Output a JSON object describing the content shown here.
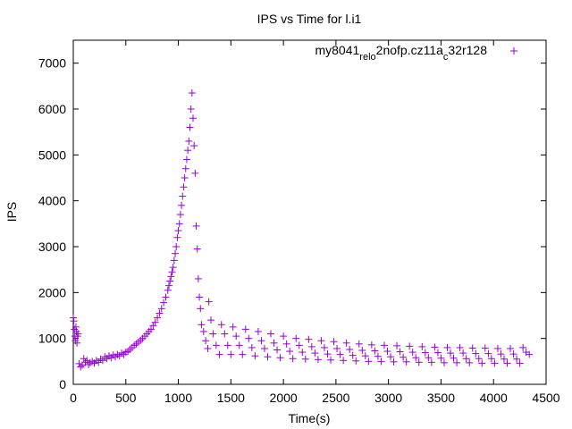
{
  "chart_data": {
    "type": "scatter",
    "title": "IPS vs Time for l.i1",
    "xlabel": "Time(s)",
    "ylabel": "IPS",
    "xlim": [
      0,
      4500
    ],
    "ylim": [
      0,
      7500
    ],
    "xticks": [
      0,
      500,
      1000,
      1500,
      2000,
      2500,
      3000,
      3500,
      4000,
      4500
    ],
    "yticks": [
      0,
      1000,
      2000,
      3000,
      4000,
      5000,
      6000,
      7000
    ],
    "grid": false,
    "legend_position": "top-right",
    "marker": "plus",
    "series": [
      {
        "name": "my8041_rel_o2nofp.cz11a_c32r128",
        "legend_parts": [
          {
            "text": "my8041",
            "sub": false
          },
          {
            "text": "rel",
            "sub": true
          },
          {
            "text": "o",
            "sub": true
          },
          {
            "text": "2nofp.cz11a",
            "sub": false
          },
          {
            "text": "c",
            "sub": true
          },
          {
            "text": "32r128",
            "sub": false
          }
        ],
        "color": "#9400d3",
        "points": [
          [
            0,
            1450
          ],
          [
            5,
            1380
          ],
          [
            10,
            1200
          ],
          [
            15,
            1050
          ],
          [
            20,
            950
          ],
          [
            25,
            1250
          ],
          [
            30,
            1150
          ],
          [
            35,
            900
          ],
          [
            40,
            1050
          ],
          [
            45,
            1100
          ],
          [
            55,
            450
          ],
          [
            70,
            380
          ],
          [
            85,
            420
          ],
          [
            100,
            560
          ],
          [
            115,
            480
          ],
          [
            130,
            520
          ],
          [
            145,
            430
          ],
          [
            160,
            470
          ],
          [
            180,
            500
          ],
          [
            200,
            460
          ],
          [
            220,
            520
          ],
          [
            240,
            480
          ],
          [
            260,
            550
          ],
          [
            280,
            520
          ],
          [
            300,
            600
          ],
          [
            320,
            560
          ],
          [
            340,
            620
          ],
          [
            360,
            580
          ],
          [
            380,
            640
          ],
          [
            400,
            600
          ],
          [
            420,
            650
          ],
          [
            440,
            620
          ],
          [
            460,
            680
          ],
          [
            480,
            650
          ],
          [
            500,
            700
          ],
          [
            520,
            720
          ],
          [
            540,
            760
          ],
          [
            560,
            800
          ],
          [
            580,
            850
          ],
          [
            600,
            880
          ],
          [
            620,
            920
          ],
          [
            640,
            960
          ],
          [
            660,
            1000
          ],
          [
            680,
            1050
          ],
          [
            700,
            1100
          ],
          [
            720,
            1150
          ],
          [
            740,
            1200
          ],
          [
            760,
            1280
          ],
          [
            780,
            1350
          ],
          [
            800,
            1450
          ],
          [
            820,
            1550
          ],
          [
            840,
            1650
          ],
          [
            860,
            1780
          ],
          [
            880,
            1900
          ],
          [
            900,
            2050
          ],
          [
            910,
            2150
          ],
          [
            920,
            2250
          ],
          [
            930,
            2350
          ],
          [
            940,
            2450
          ],
          [
            950,
            2550
          ],
          [
            960,
            2700
          ],
          [
            970,
            2850
          ],
          [
            980,
            3000
          ],
          [
            990,
            3200
          ],
          [
            1000,
            3350
          ],
          [
            1010,
            3500
          ],
          [
            1020,
            3700
          ],
          [
            1030,
            3900
          ],
          [
            1040,
            4100
          ],
          [
            1050,
            4300
          ],
          [
            1060,
            4500
          ],
          [
            1070,
            4700
          ],
          [
            1080,
            4900
          ],
          [
            1090,
            5100
          ],
          [
            1100,
            5300
          ],
          [
            1110,
            5600
          ],
          [
            1120,
            6000
          ],
          [
            1130,
            6350
          ],
          [
            1140,
            5800
          ],
          [
            1150,
            5200
          ],
          [
            1160,
            4600
          ],
          [
            1170,
            3450
          ],
          [
            1180,
            2950
          ],
          [
            1190,
            2300
          ],
          [
            1200,
            1900
          ],
          [
            1210,
            1650
          ],
          [
            1220,
            1300
          ],
          [
            1240,
            1150
          ],
          [
            1260,
            950
          ],
          [
            1280,
            780
          ],
          [
            1290,
            1800
          ],
          [
            1310,
            1400
          ],
          [
            1330,
            1100
          ],
          [
            1360,
            850
          ],
          [
            1390,
            650
          ],
          [
            1410,
            1300
          ],
          [
            1440,
            1100
          ],
          [
            1470,
            850
          ],
          [
            1500,
            650
          ],
          [
            1520,
            1250
          ],
          [
            1550,
            1050
          ],
          [
            1580,
            850
          ],
          [
            1610,
            650
          ],
          [
            1640,
            1200
          ],
          [
            1670,
            1000
          ],
          [
            1700,
            800
          ],
          [
            1730,
            620
          ],
          [
            1760,
            1150
          ],
          [
            1790,
            950
          ],
          [
            1820,
            780
          ],
          [
            1850,
            600
          ],
          [
            1880,
            1100
          ],
          [
            1910,
            900
          ],
          [
            1940,
            750
          ],
          [
            1970,
            580
          ],
          [
            2000,
            1050
          ],
          [
            2030,
            880
          ],
          [
            2060,
            720
          ],
          [
            2090,
            560
          ],
          [
            2120,
            1000
          ],
          [
            2150,
            850
          ],
          [
            2180,
            700
          ],
          [
            2210,
            550
          ],
          [
            2240,
            980
          ],
          [
            2270,
            820
          ],
          [
            2300,
            680
          ],
          [
            2330,
            540
          ],
          [
            2360,
            950
          ],
          [
            2390,
            800
          ],
          [
            2420,
            660
          ],
          [
            2450,
            530
          ],
          [
            2480,
            930
          ],
          [
            2510,
            780
          ],
          [
            2540,
            650
          ],
          [
            2570,
            520
          ],
          [
            2600,
            900
          ],
          [
            2630,
            760
          ],
          [
            2660,
            630
          ],
          [
            2690,
            510
          ],
          [
            2720,
            880
          ],
          [
            2750,
            740
          ],
          [
            2780,
            620
          ],
          [
            2810,
            500
          ],
          [
            2840,
            860
          ],
          [
            2870,
            730
          ],
          [
            2900,
            610
          ],
          [
            2930,
            500
          ],
          [
            2960,
            850
          ],
          [
            2990,
            720
          ],
          [
            3020,
            600
          ],
          [
            3050,
            490
          ],
          [
            3080,
            840
          ],
          [
            3110,
            710
          ],
          [
            3140,
            590
          ],
          [
            3170,
            490
          ],
          [
            3200,
            830
          ],
          [
            3230,
            700
          ],
          [
            3260,
            580
          ],
          [
            3290,
            480
          ],
          [
            3320,
            820
          ],
          [
            3350,
            690
          ],
          [
            3380,
            580
          ],
          [
            3410,
            480
          ],
          [
            3440,
            810
          ],
          [
            3470,
            690
          ],
          [
            3500,
            570
          ],
          [
            3530,
            470
          ],
          [
            3560,
            800
          ],
          [
            3590,
            680
          ],
          [
            3620,
            570
          ],
          [
            3650,
            470
          ],
          [
            3680,
            800
          ],
          [
            3710,
            680
          ],
          [
            3740,
            560
          ],
          [
            3770,
            470
          ],
          [
            3800,
            790
          ],
          [
            3830,
            670
          ],
          [
            3860,
            560
          ],
          [
            3890,
            460
          ],
          [
            3920,
            790
          ],
          [
            3950,
            670
          ],
          [
            3980,
            560
          ],
          [
            4010,
            460
          ],
          [
            4040,
            780
          ],
          [
            4070,
            660
          ],
          [
            4100,
            550
          ],
          [
            4130,
            460
          ],
          [
            4160,
            780
          ],
          [
            4190,
            660
          ],
          [
            4220,
            550
          ],
          [
            4250,
            460
          ],
          [
            4280,
            800
          ],
          [
            4310,
            700
          ],
          [
            4340,
            650
          ]
        ]
      }
    ]
  }
}
